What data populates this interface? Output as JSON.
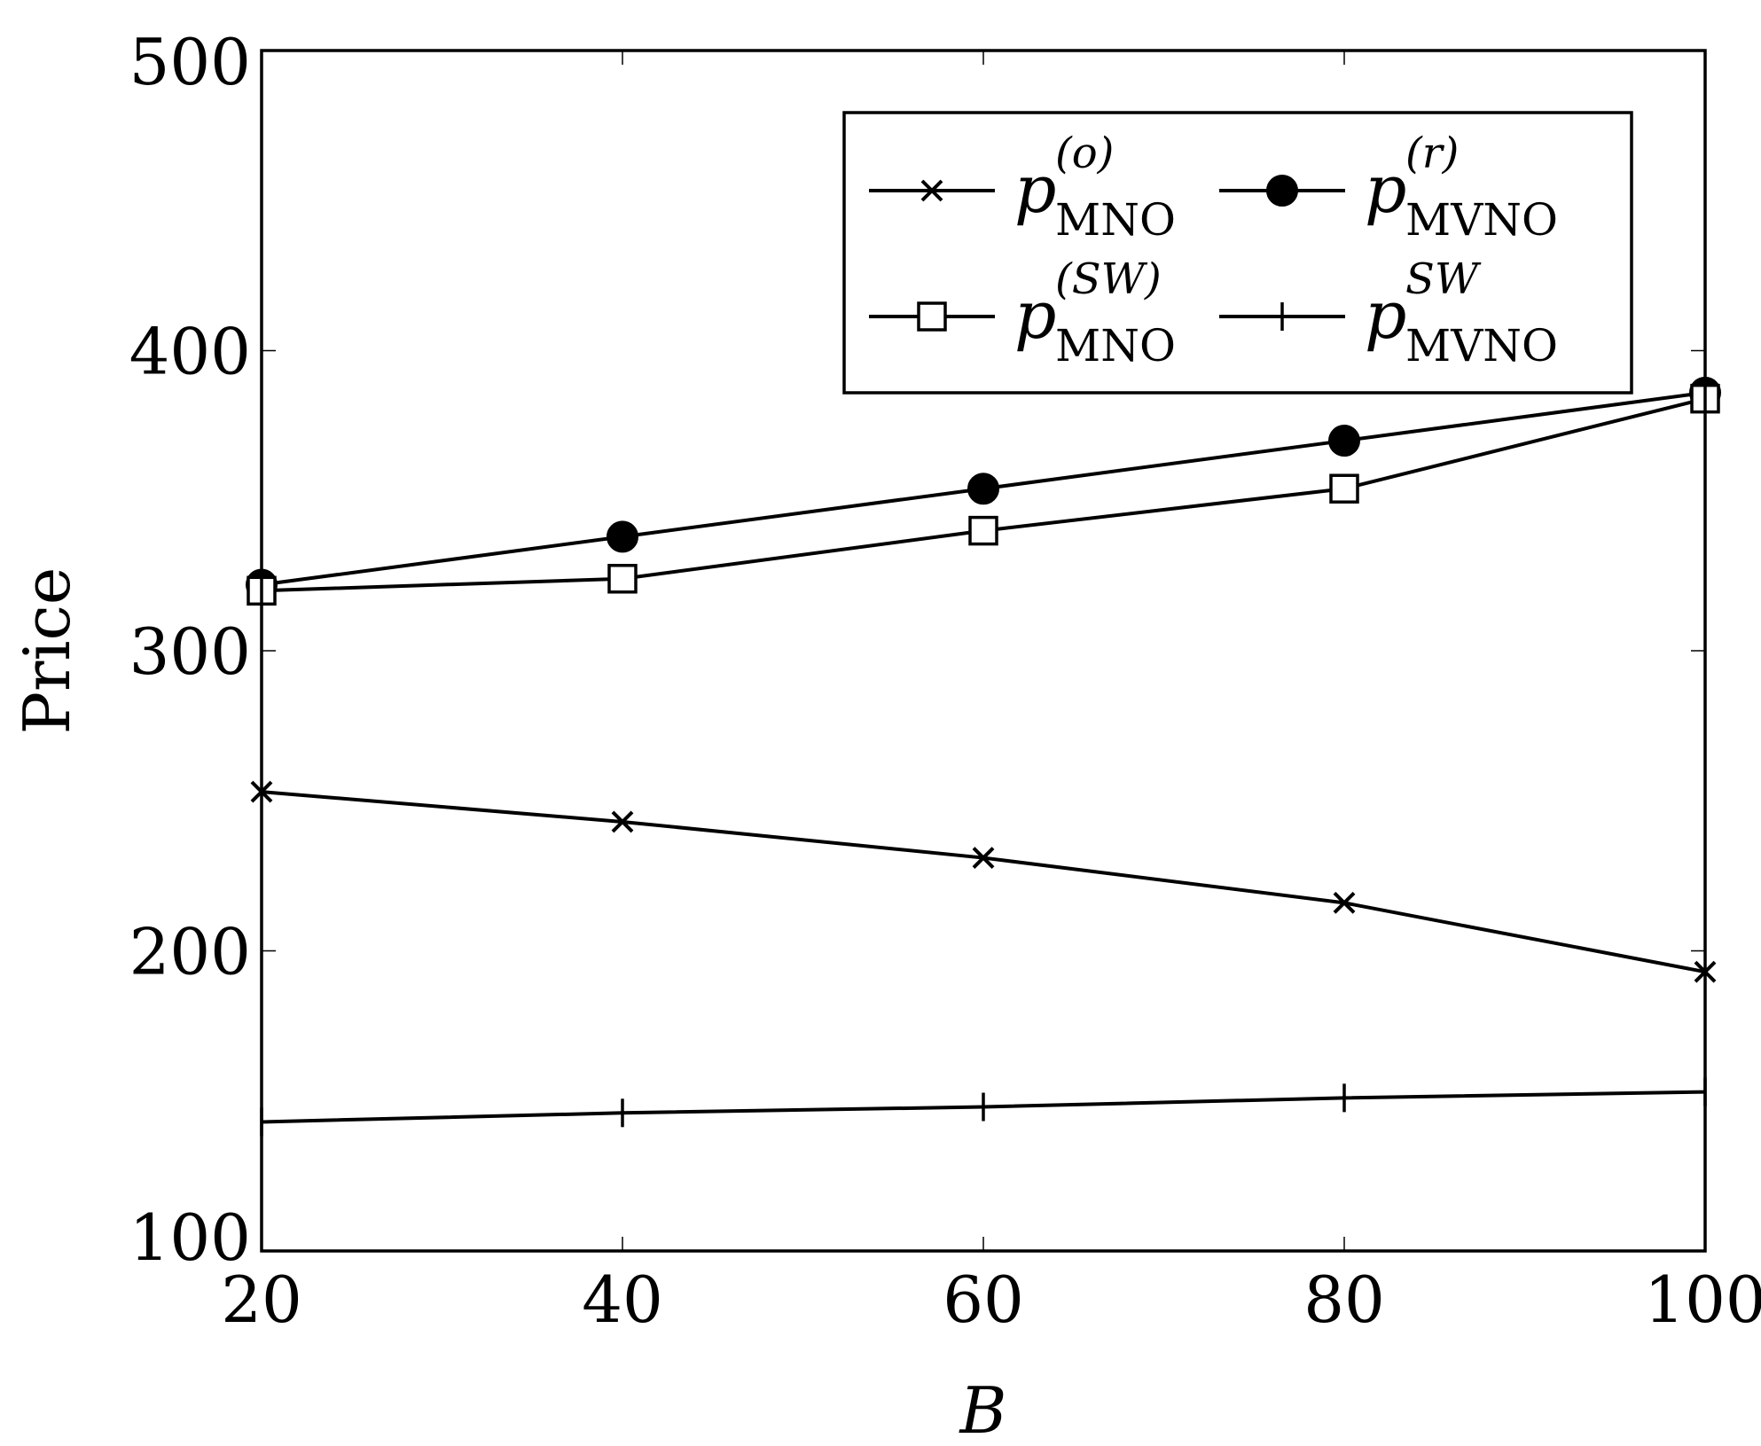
{
  "chart_data": {
    "type": "line",
    "title": "",
    "xlabel": "B",
    "ylabel": "Price",
    "x": [
      20,
      40,
      60,
      80,
      100
    ],
    "xlim": [
      20,
      100
    ],
    "ylim": [
      100,
      500
    ],
    "xticks": [
      "20",
      "40",
      "60",
      "80",
      "100"
    ],
    "yticks": [
      "100",
      "200",
      "300",
      "400",
      "500"
    ],
    "grid": false,
    "legend_position": "top-right",
    "series": [
      {
        "id": "p_mno_o",
        "name": "p^(o)_MNO",
        "legend_main": "p",
        "legend_sup": "(o)",
        "legend_sub": "MNO",
        "marker": "x",
        "values": [
          253,
          243,
          231,
          216,
          193
        ]
      },
      {
        "id": "p_mvno_r",
        "name": "p^(r)_MVNO",
        "legend_main": "p",
        "legend_sup": "(r)",
        "legend_sub": "MVNO",
        "marker": "filled-circle",
        "values": [
          322,
          338,
          354,
          370,
          386
        ]
      },
      {
        "id": "p_mno_sw",
        "name": "p^(SW)_MNO",
        "legend_main": "p",
        "legend_sup": "(SW)",
        "legend_sub": "MNO",
        "marker": "open-square",
        "values": [
          320,
          324,
          340,
          354,
          384
        ]
      },
      {
        "id": "p_mvno_sw",
        "name": "p^SW_MVNO",
        "legend_main": "p",
        "legend_sup": "SW",
        "legend_sub": "MVNO",
        "marker": "vertical-bar",
        "values": [
          143,
          146,
          148,
          151,
          153
        ]
      }
    ]
  }
}
